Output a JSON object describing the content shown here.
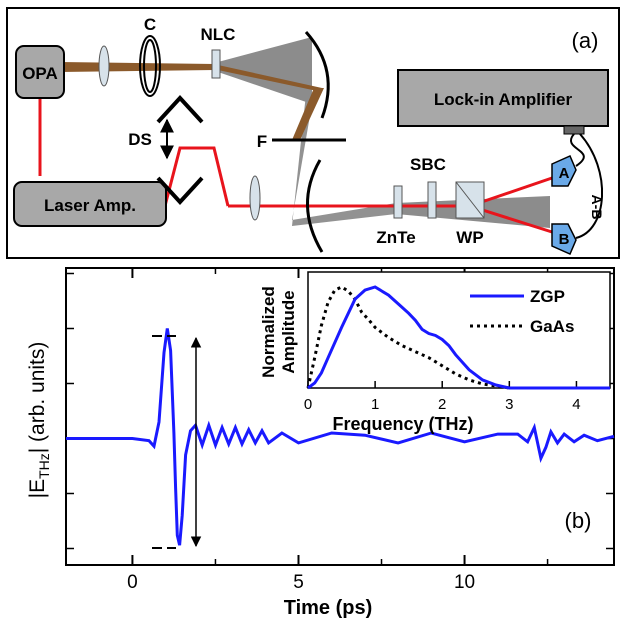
{
  "panel_a": {
    "panel_label": "(a)",
    "components": {
      "opa": "OPA",
      "laser_amp": "Laser Amp.",
      "lockin": "Lock-in Amplifier",
      "chopper": "C",
      "nlc": "NLC",
      "delay_stage": "DS",
      "filter": "F",
      "sbc": "SBC",
      "znte": "ZnTe",
      "wp": "WP",
      "det_a": "A",
      "det_b": "B",
      "diff": "A-B"
    },
    "colors": {
      "laser": "#e8141c",
      "thz": "#8c8c8c",
      "ir": "#8b5a2b"
    }
  },
  "panel_b": {
    "panel_label": "(b)",
    "xlabel": "Time (ps)",
    "ylabel_main": "|E",
    "ylabel_sub": "THz",
    "ylabel_tail": "| (arb. units)",
    "xticks": [
      "0",
      "5",
      "10"
    ],
    "inset": {
      "xlabel": "Frequency (THz)",
      "ylabel_line1": "Normalized",
      "ylabel_line2": "Amplitude",
      "xticks": [
        "0",
        "1",
        "2",
        "3",
        "4"
      ]
    }
  },
  "chart_data": [
    {
      "type": "line",
      "title": "",
      "xlabel": "Time (ps)",
      "ylabel": "|E_THz| (arb. units)",
      "xlim": [
        -2,
        14.5
      ],
      "ylim": [
        -1.15,
        1.55
      ],
      "series": [
        {
          "color": "#1a1aff",
          "x": [
            -2.0,
            -1.0,
            0.0,
            0.5,
            0.65,
            0.8,
            0.95,
            1.05,
            1.15,
            1.25,
            1.3,
            1.35,
            1.42,
            1.5,
            1.6,
            1.75,
            1.9,
            2.1,
            2.3,
            2.5,
            2.7,
            2.9,
            3.1,
            3.3,
            3.5,
            3.7,
            3.9,
            4.1,
            4.5,
            5.0,
            6.0,
            7.0,
            8.0,
            9.0,
            10.0,
            11.0,
            11.6,
            11.9,
            12.1,
            12.3,
            12.45,
            12.6,
            12.8,
            13.0,
            13.3,
            13.6,
            14.0,
            14.5
          ],
          "y": [
            0.0,
            0.0,
            0.0,
            -0.02,
            -0.07,
            0.15,
            0.78,
            1.0,
            0.8,
            0.05,
            -0.45,
            -0.88,
            -0.97,
            -0.7,
            -0.15,
            0.07,
            0.12,
            -0.06,
            0.12,
            -0.06,
            0.1,
            -0.05,
            0.1,
            -0.05,
            0.08,
            -0.04,
            0.07,
            -0.04,
            0.05,
            -0.04,
            0.05,
            0.03,
            -0.04,
            0.05,
            -0.03,
            0.04,
            0.04,
            -0.03,
            0.1,
            -0.18,
            -0.08,
            0.06,
            -0.04,
            0.04,
            -0.03,
            0.03,
            -0.02,
            0.02
          ]
        }
      ]
    },
    {
      "type": "line",
      "title": "",
      "xlabel": "Frequency (THz)",
      "ylabel": "Normalized Amplitude",
      "xlim": [
        0,
        4.5
      ],
      "ylim": [
        0,
        1.05
      ],
      "legend": "top-right",
      "series": [
        {
          "name": "ZGP",
          "color": "#1a1aff",
          "style": "solid",
          "x": [
            0.0,
            0.1,
            0.2,
            0.3,
            0.5,
            0.7,
            0.85,
            1.0,
            1.2,
            1.4,
            1.5,
            1.6,
            1.7,
            1.8,
            1.9,
            2.0,
            2.1,
            2.2,
            2.4,
            2.6,
            2.8,
            3.0,
            4.5
          ],
          "y": [
            0.0,
            0.05,
            0.15,
            0.3,
            0.6,
            0.88,
            0.97,
            1.0,
            0.92,
            0.8,
            0.74,
            0.67,
            0.58,
            0.54,
            0.52,
            0.48,
            0.42,
            0.33,
            0.18,
            0.08,
            0.03,
            0.0,
            0.0
          ]
        },
        {
          "name": "GaAs",
          "color": "#000000",
          "style": "dotted",
          "x": [
            0.0,
            0.1,
            0.2,
            0.3,
            0.4,
            0.5,
            0.6,
            0.7,
            0.8,
            0.9,
            1.0,
            1.2,
            1.4,
            1.6,
            1.8,
            2.0,
            2.2,
            2.4,
            2.6,
            2.8,
            3.0,
            4.5
          ],
          "y": [
            0.0,
            0.3,
            0.62,
            0.85,
            0.97,
            1.0,
            0.96,
            0.88,
            0.75,
            0.68,
            0.6,
            0.5,
            0.42,
            0.36,
            0.3,
            0.22,
            0.14,
            0.08,
            0.04,
            0.02,
            0.0,
            0.0
          ]
        }
      ]
    }
  ]
}
